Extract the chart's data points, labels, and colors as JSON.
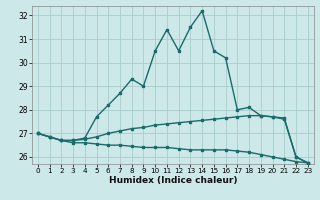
{
  "bg_color": "#cde8e8",
  "grid_color": "#aacccc",
  "line_color": "#1a6b6b",
  "xlabel": "Humidex (Indice chaleur)",
  "xlim": [
    -0.5,
    23.5
  ],
  "ylim": [
    25.7,
    32.4
  ],
  "yticks": [
    26,
    27,
    28,
    29,
    30,
    31,
    32
  ],
  "xticks": [
    0,
    1,
    2,
    3,
    4,
    5,
    6,
    7,
    8,
    9,
    10,
    11,
    12,
    13,
    14,
    15,
    16,
    17,
    18,
    19,
    20,
    21,
    22,
    23
  ],
  "line1_x": [
    0,
    1,
    2,
    3,
    4,
    5,
    6,
    7,
    8,
    9,
    10,
    11,
    12,
    13,
    14,
    15,
    16,
    17,
    18,
    19,
    20,
    21,
    22,
    23
  ],
  "line1_y": [
    27.0,
    26.85,
    26.7,
    26.6,
    26.6,
    26.55,
    26.5,
    26.5,
    26.45,
    26.4,
    26.4,
    26.4,
    26.35,
    26.3,
    26.3,
    26.3,
    26.3,
    26.25,
    26.2,
    26.1,
    26.0,
    25.9,
    25.8,
    25.75
  ],
  "line2_x": [
    0,
    1,
    2,
    3,
    4,
    5,
    6,
    7,
    8,
    9,
    10,
    11,
    12,
    13,
    14,
    15,
    16,
    17,
    18,
    19,
    20,
    21,
    22,
    23
  ],
  "line2_y": [
    27.0,
    26.85,
    26.7,
    26.7,
    26.75,
    26.85,
    27.0,
    27.1,
    27.2,
    27.25,
    27.35,
    27.4,
    27.45,
    27.5,
    27.55,
    27.6,
    27.65,
    27.7,
    27.75,
    27.75,
    27.7,
    27.65,
    26.0,
    25.75
  ],
  "line3_x": [
    0,
    1,
    2,
    3,
    4,
    5,
    6,
    7,
    8,
    9,
    10,
    11,
    12,
    13,
    14,
    15,
    16,
    17,
    18,
    19,
    20,
    21,
    22,
    23
  ],
  "line3_y": [
    27.0,
    26.85,
    26.7,
    26.7,
    26.8,
    27.7,
    28.2,
    28.7,
    29.3,
    29.0,
    30.5,
    31.4,
    30.5,
    31.5,
    32.2,
    30.5,
    30.2,
    28.0,
    28.1,
    27.75,
    27.7,
    27.6,
    26.0,
    25.75
  ]
}
